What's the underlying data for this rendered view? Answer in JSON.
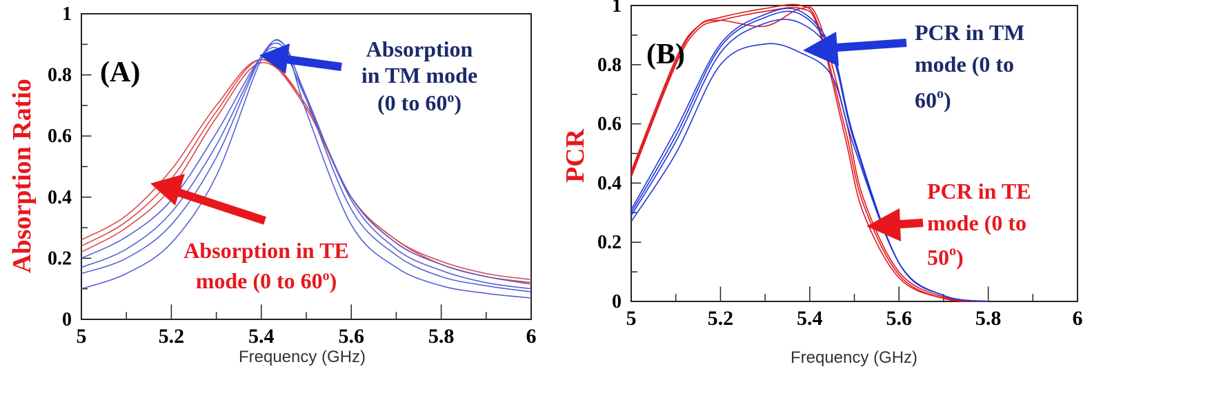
{
  "colors": {
    "te": "#e0161b",
    "tm": "#1f36d8",
    "te_line": "#d9494d",
    "tm_line": "#5561d6",
    "tm_text": "#1b2a6b",
    "te_text": "#e8171d"
  },
  "chart_data": [
    {
      "panel": "(A)",
      "type": "line",
      "xlabel": "Frequency (GHz)",
      "ylabel": "Absorption Ratio",
      "xlim": [
        5,
        6
      ],
      "ylim": [
        0,
        1
      ],
      "x_ticks": [
        "5",
        "5.2",
        "5.4",
        "5.6",
        "5.8",
        "6"
      ],
      "y_ticks": [
        "0",
        "0.2",
        "0.4",
        "0.6",
        "0.8",
        "1"
      ],
      "series": [
        {
          "name": "TE",
          "color": "#d9494d",
          "x": [
            5.0,
            5.1,
            5.2,
            5.3,
            5.4,
            5.5,
            5.6,
            5.7,
            5.8,
            5.9,
            6.0
          ],
          "curves": [
            [
              0.26,
              0.34,
              0.49,
              0.7,
              0.85,
              0.69,
              0.4,
              0.26,
              0.19,
              0.15,
              0.13
            ],
            [
              0.24,
              0.32,
              0.46,
              0.68,
              0.85,
              0.7,
              0.4,
              0.26,
              0.18,
              0.14,
              0.12
            ],
            [
              0.22,
              0.3,
              0.43,
              0.66,
              0.84,
              0.7,
              0.4,
              0.25,
              0.18,
              0.14,
              0.115
            ]
          ]
        },
        {
          "name": "TM",
          "color": "#5561d6",
          "x": [
            5.0,
            5.1,
            5.2,
            5.3,
            5.4,
            5.45,
            5.5,
            5.6,
            5.7,
            5.8,
            5.9,
            6.0
          ],
          "curves": [
            [
              0.2,
              0.27,
              0.39,
              0.61,
              0.86,
              0.87,
              0.72,
              0.4,
              0.25,
              0.18,
              0.14,
              0.12
            ],
            [
              0.17,
              0.23,
              0.35,
              0.57,
              0.86,
              0.89,
              0.73,
              0.39,
              0.23,
              0.16,
              0.12,
              0.1
            ],
            [
              0.15,
              0.2,
              0.31,
              0.53,
              0.86,
              0.9,
              0.72,
              0.36,
              0.21,
              0.14,
              0.11,
              0.09
            ],
            [
              0.1,
              0.15,
              0.25,
              0.47,
              0.85,
              0.9,
              0.68,
              0.31,
              0.17,
              0.11,
              0.085,
              0.07
            ]
          ]
        }
      ],
      "annotations": [
        {
          "lines": [
            "Absorption",
            "in TM mode",
            "(0 to 60",
            ")"
          ],
          "sup": "o",
          "color": "tm"
        },
        {
          "lines": [
            "Absorption in TE",
            "mode (0 to 60",
            ")"
          ],
          "sup": "o",
          "color": "te"
        }
      ]
    },
    {
      "panel": "(B)",
      "type": "line",
      "xlabel": "Frequency (GHz)",
      "ylabel": "PCR",
      "xlim": [
        5,
        6
      ],
      "ylim": [
        0,
        1
      ],
      "x_ticks": [
        "5",
        "5.2",
        "5.4",
        "5.6",
        "5.8",
        "6"
      ],
      "y_ticks": [
        "0",
        "0.2",
        "0.4",
        "0.6",
        "0.8",
        "1"
      ],
      "series": [
        {
          "name": "TE",
          "color": "#e0161b",
          "x": [
            5.0,
            5.1,
            5.15,
            5.2,
            5.3,
            5.38,
            5.42,
            5.48,
            5.52,
            5.6,
            5.7,
            5.8
          ],
          "curves": [
            [
              0.42,
              0.8,
              0.92,
              0.95,
              0.98,
              0.99,
              0.92,
              0.55,
              0.3,
              0.08,
              0.01,
              0.0
            ],
            [
              0.43,
              0.81,
              0.93,
              0.96,
              0.99,
              1.0,
              0.93,
              0.58,
              0.33,
              0.09,
              0.01,
              0.0
            ],
            [
              0.44,
              0.82,
              0.93,
              0.95,
              0.93,
              0.99,
              0.95,
              0.62,
              0.35,
              0.1,
              0.015,
              0.0
            ]
          ]
        },
        {
          "name": "TM",
          "color": "#1f36d8",
          "x": [
            5.0,
            5.1,
            5.2,
            5.3,
            5.38,
            5.45,
            5.5,
            5.6,
            5.7,
            5.8
          ],
          "curves": [
            [
              0.31,
              0.58,
              0.87,
              0.97,
              0.98,
              0.85,
              0.55,
              0.13,
              0.02,
              0.0
            ],
            [
              0.3,
              0.56,
              0.86,
              0.96,
              0.97,
              0.84,
              0.55,
              0.13,
              0.02,
              0.0
            ],
            [
              0.29,
              0.54,
              0.84,
              0.94,
              0.94,
              0.83,
              0.54,
              0.13,
              0.02,
              0.0
            ],
            [
              0.27,
              0.5,
              0.8,
              0.87,
              0.84,
              0.76,
              0.52,
              0.13,
              0.02,
              0.0
            ]
          ]
        }
      ],
      "annotations": [
        {
          "lines": [
            "PCR in TM",
            "mode (0 to",
            "60",
            ")"
          ],
          "sup": "o",
          "color": "tm"
        },
        {
          "lines": [
            "PCR in TE",
            "mode (0 to",
            "50",
            ")"
          ],
          "sup": "o",
          "color": "te"
        }
      ]
    }
  ]
}
